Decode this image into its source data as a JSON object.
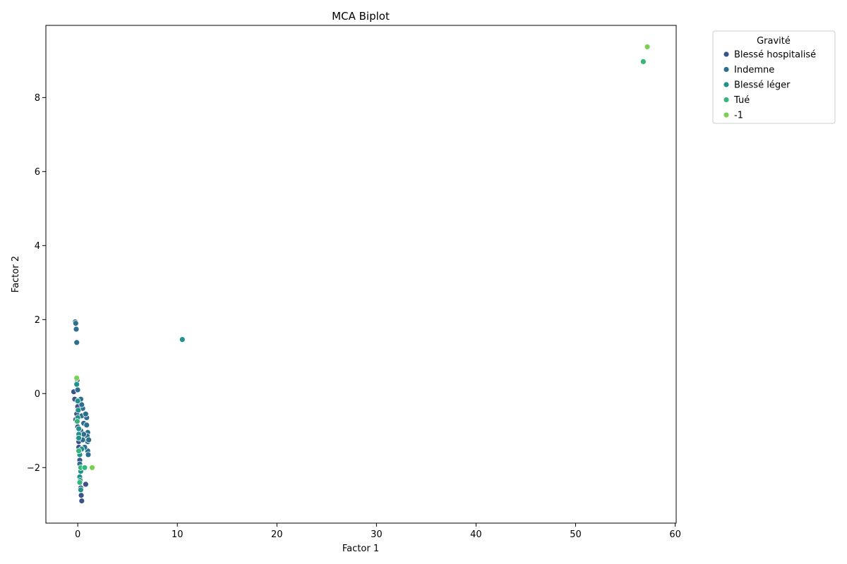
{
  "chart_data": {
    "type": "scatter",
    "title": "MCA Biplot",
    "xlabel": "Factor 1",
    "ylabel": "Factor 2",
    "xlim": [
      -3.2,
      60.1
    ],
    "ylim": [
      -3.5,
      9.95
    ],
    "xticks": [
      0,
      10,
      20,
      30,
      40,
      50,
      60
    ],
    "yticks": [
      -2,
      0,
      2,
      4,
      6,
      8
    ],
    "grid": false,
    "legend": {
      "title": "Gravité",
      "position": "outside-top-right"
    },
    "series": [
      {
        "name": "Blessé hospitalisé",
        "color": "#3b528b",
        "points": [
          [
            -0.4,
            0.05
          ],
          [
            -0.3,
            -0.15
          ],
          [
            -0.1,
            -0.55
          ],
          [
            0.0,
            -0.9
          ],
          [
            0.1,
            -1.3
          ],
          [
            0.15,
            -1.6
          ],
          [
            0.2,
            -1.8
          ],
          [
            0.3,
            -2.05
          ],
          [
            0.2,
            -2.35
          ],
          [
            0.3,
            -2.55
          ],
          [
            0.35,
            -2.75
          ],
          [
            0.4,
            -2.9
          ],
          [
            0.8,
            -2.45
          ],
          [
            0.1,
            -1.45
          ],
          [
            0.0,
            -0.35
          ],
          [
            -0.2,
            -0.7
          ]
        ]
      },
      {
        "name": "Indemne",
        "color": "#2c6f8e",
        "points": [
          [
            -0.25,
            1.94
          ],
          [
            -0.2,
            1.9
          ],
          [
            -0.15,
            1.74
          ],
          [
            -0.1,
            1.38
          ],
          [
            -0.05,
            0.37
          ],
          [
            0.0,
            0.1
          ],
          [
            0.3,
            -0.15
          ],
          [
            0.5,
            -0.4
          ],
          [
            0.4,
            -0.6
          ],
          [
            0.6,
            -0.8
          ],
          [
            0.9,
            -0.65
          ],
          [
            0.9,
            -0.85
          ],
          [
            1.0,
            -1.05
          ],
          [
            0.95,
            -1.15
          ],
          [
            1.0,
            -1.3
          ],
          [
            1.1,
            -1.25
          ],
          [
            1.0,
            -1.55
          ],
          [
            1.05,
            -1.65
          ],
          [
            0.3,
            -1.0
          ],
          [
            0.5,
            -1.25
          ],
          [
            0.2,
            -1.9
          ],
          [
            0.4,
            -0.3
          ],
          [
            0.7,
            -1.45
          ],
          [
            0.8,
            -0.55
          ],
          [
            0.6,
            -1.1
          ]
        ]
      },
      {
        "name": "Blessé léger",
        "color": "#21918c",
        "points": [
          [
            10.5,
            1.46
          ],
          [
            -0.1,
            0.25
          ],
          [
            0.0,
            -0.2
          ],
          [
            0.0,
            -0.65
          ],
          [
            0.1,
            -1.1
          ],
          [
            0.1,
            -1.2
          ],
          [
            0.15,
            -1.55
          ],
          [
            0.2,
            -1.65
          ],
          [
            0.2,
            -2.25
          ],
          [
            0.25,
            -2.35
          ],
          [
            0.3,
            -2.6
          ],
          [
            0.3,
            -2.1
          ],
          [
            0.4,
            -1.5
          ],
          [
            0.05,
            -0.45
          ],
          [
            0.1,
            -0.95
          ]
        ]
      },
      {
        "name": "Tué",
        "color": "#35b779",
        "points": [
          [
            56.8,
            8.97
          ],
          [
            0.3,
            -2.0
          ],
          [
            0.7,
            -2.0
          ],
          [
            0.1,
            -1.55
          ],
          [
            -0.05,
            -0.75
          ],
          [
            0.2,
            -2.4
          ]
        ]
      },
      {
        "name": "-1",
        "color": "#7ad151",
        "points": [
          [
            57.2,
            9.37
          ],
          [
            1.45,
            -2.0
          ],
          [
            -0.1,
            0.42
          ]
        ]
      }
    ]
  }
}
